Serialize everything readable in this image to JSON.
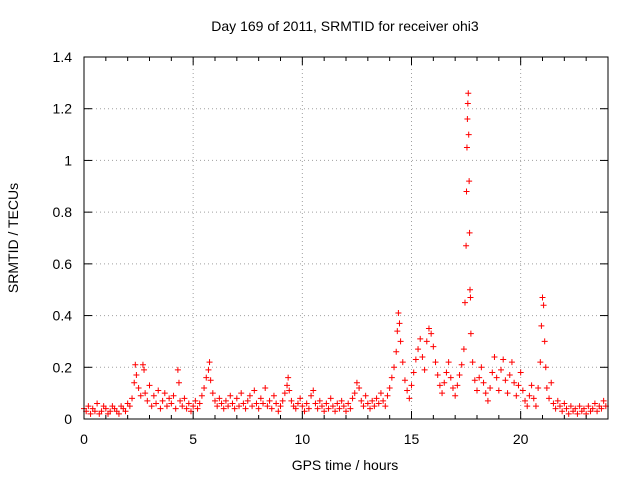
{
  "chart_data": {
    "type": "scatter",
    "title": "Day 169 of 2011, SRMTID for receiver ohi3",
    "xlabel": "GPS time / hours",
    "ylabel": "SRMTID / TECUs",
    "xlim": [
      0,
      24
    ],
    "ylim": [
      0,
      1.4
    ],
    "xticks": [
      0,
      5,
      10,
      15,
      20
    ],
    "xtick_labels": [
      "0",
      "5",
      "10",
      "15",
      "20"
    ],
    "yticks": [
      0,
      0.2,
      0.4,
      0.6,
      0.8,
      1.0,
      1.2,
      1.4
    ],
    "ytick_labels": [
      "0",
      "0.2",
      "0.4",
      "0.6",
      "0.8",
      "1",
      "1.2",
      "1.4"
    ],
    "grid": true,
    "marker": "plus",
    "colors": {
      "series": "#ff0000",
      "grid": "#a0a0a0",
      "axis": "#000000"
    },
    "series": [
      {
        "name": "SRMTID",
        "points": [
          [
            0.0,
            0.04
          ],
          [
            0.1,
            0.03
          ],
          [
            0.2,
            0.05
          ],
          [
            0.3,
            0.02
          ],
          [
            0.4,
            0.04
          ],
          [
            0.5,
            0.03
          ],
          [
            0.6,
            0.06
          ],
          [
            0.7,
            0.02
          ],
          [
            0.8,
            0.03
          ],
          [
            0.9,
            0.05
          ],
          [
            1.0,
            0.04
          ],
          [
            1.1,
            0.02
          ],
          [
            1.2,
            0.03
          ],
          [
            1.3,
            0.05
          ],
          [
            1.4,
            0.04
          ],
          [
            1.5,
            0.03
          ],
          [
            1.6,
            0.02
          ],
          [
            1.7,
            0.05
          ],
          [
            1.8,
            0.04
          ],
          [
            1.9,
            0.03
          ],
          [
            2.0,
            0.06
          ],
          [
            2.1,
            0.05
          ],
          [
            2.2,
            0.08
          ],
          [
            2.3,
            0.14
          ],
          [
            2.35,
            0.21
          ],
          [
            2.4,
            0.17
          ],
          [
            2.5,
            0.12
          ],
          [
            2.6,
            0.09
          ],
          [
            2.7,
            0.21
          ],
          [
            2.75,
            0.19
          ],
          [
            2.8,
            0.1
          ],
          [
            2.9,
            0.07
          ],
          [
            3.0,
            0.13
          ],
          [
            3.1,
            0.05
          ],
          [
            3.2,
            0.09
          ],
          [
            3.3,
            0.06
          ],
          [
            3.4,
            0.11
          ],
          [
            3.5,
            0.04
          ],
          [
            3.6,
            0.07
          ],
          [
            3.7,
            0.1
          ],
          [
            3.8,
            0.05
          ],
          [
            3.9,
            0.08
          ],
          [
            4.0,
            0.06
          ],
          [
            4.1,
            0.09
          ],
          [
            4.2,
            0.04
          ],
          [
            4.3,
            0.19
          ],
          [
            4.35,
            0.14
          ],
          [
            4.4,
            0.07
          ],
          [
            4.5,
            0.05
          ],
          [
            4.6,
            0.08
          ],
          [
            4.7,
            0.04
          ],
          [
            4.8,
            0.06
          ],
          [
            4.9,
            0.03
          ],
          [
            5.0,
            0.05
          ],
          [
            5.1,
            0.07
          ],
          [
            5.2,
            0.04
          ],
          [
            5.3,
            0.06
          ],
          [
            5.4,
            0.09
          ],
          [
            5.5,
            0.12
          ],
          [
            5.6,
            0.16
          ],
          [
            5.7,
            0.19
          ],
          [
            5.75,
            0.22
          ],
          [
            5.8,
            0.15
          ],
          [
            5.9,
            0.1
          ],
          [
            6.0,
            0.07
          ],
          [
            6.1,
            0.05
          ],
          [
            6.2,
            0.08
          ],
          [
            6.3,
            0.06
          ],
          [
            6.4,
            0.04
          ],
          [
            6.5,
            0.07
          ],
          [
            6.6,
            0.05
          ],
          [
            6.7,
            0.09
          ],
          [
            6.8,
            0.06
          ],
          [
            6.9,
            0.04
          ],
          [
            7.0,
            0.08
          ],
          [
            7.1,
            0.05
          ],
          [
            7.2,
            0.1
          ],
          [
            7.3,
            0.06
          ],
          [
            7.4,
            0.04
          ],
          [
            7.5,
            0.07
          ],
          [
            7.6,
            0.09
          ],
          [
            7.7,
            0.05
          ],
          [
            7.8,
            0.11
          ],
          [
            7.9,
            0.06
          ],
          [
            8.0,
            0.04
          ],
          [
            8.1,
            0.08
          ],
          [
            8.2,
            0.06
          ],
          [
            8.3,
            0.12
          ],
          [
            8.4,
            0.05
          ],
          [
            8.5,
            0.07
          ],
          [
            8.6,
            0.04
          ],
          [
            8.7,
            0.09
          ],
          [
            8.8,
            0.06
          ],
          [
            8.9,
            0.03
          ],
          [
            9.0,
            0.05
          ],
          [
            9.1,
            0.07
          ],
          [
            9.2,
            0.1
          ],
          [
            9.3,
            0.13
          ],
          [
            9.35,
            0.16
          ],
          [
            9.4,
            0.11
          ],
          [
            9.5,
            0.07
          ],
          [
            9.6,
            0.05
          ],
          [
            9.7,
            0.04
          ],
          [
            9.8,
            0.06
          ],
          [
            9.9,
            0.08
          ],
          [
            10.0,
            0.05
          ],
          [
            10.1,
            0.03
          ],
          [
            10.2,
            0.06
          ],
          [
            10.3,
            0.04
          ],
          [
            10.4,
            0.09
          ],
          [
            10.5,
            0.11
          ],
          [
            10.6,
            0.06
          ],
          [
            10.7,
            0.04
          ],
          [
            10.8,
            0.07
          ],
          [
            10.9,
            0.05
          ],
          [
            11.0,
            0.03
          ],
          [
            11.1,
            0.06
          ],
          [
            11.2,
            0.04
          ],
          [
            11.3,
            0.08
          ],
          [
            11.4,
            0.05
          ],
          [
            11.5,
            0.03
          ],
          [
            11.6,
            0.06
          ],
          [
            11.7,
            0.04
          ],
          [
            11.8,
            0.07
          ],
          [
            11.9,
            0.05
          ],
          [
            12.0,
            0.03
          ],
          [
            12.1,
            0.06
          ],
          [
            12.2,
            0.04
          ],
          [
            12.3,
            0.08
          ],
          [
            12.4,
            0.1
          ],
          [
            12.5,
            0.14
          ],
          [
            12.6,
            0.12
          ],
          [
            12.7,
            0.07
          ],
          [
            12.8,
            0.05
          ],
          [
            12.9,
            0.09
          ],
          [
            13.0,
            0.06
          ],
          [
            13.1,
            0.04
          ],
          [
            13.2,
            0.07
          ],
          [
            13.3,
            0.05
          ],
          [
            13.4,
            0.08
          ],
          [
            13.5,
            0.06
          ],
          [
            13.6,
            0.1
          ],
          [
            13.7,
            0.07
          ],
          [
            13.8,
            0.05
          ],
          [
            13.9,
            0.09
          ],
          [
            14.0,
            0.12
          ],
          [
            14.1,
            0.16
          ],
          [
            14.2,
            0.2
          ],
          [
            14.3,
            0.26
          ],
          [
            14.35,
            0.34
          ],
          [
            14.4,
            0.41
          ],
          [
            14.45,
            0.37
          ],
          [
            14.5,
            0.3
          ],
          [
            14.6,
            0.22
          ],
          [
            14.7,
            0.15
          ],
          [
            14.8,
            0.11
          ],
          [
            14.9,
            0.08
          ],
          [
            15.0,
            0.13
          ],
          [
            15.1,
            0.18
          ],
          [
            15.2,
            0.23
          ],
          [
            15.3,
            0.27
          ],
          [
            15.4,
            0.31
          ],
          [
            15.5,
            0.24
          ],
          [
            15.6,
            0.19
          ],
          [
            15.7,
            0.3
          ],
          [
            15.8,
            0.35
          ],
          [
            15.9,
            0.33
          ],
          [
            16.0,
            0.28
          ],
          [
            16.1,
            0.22
          ],
          [
            16.2,
            0.17
          ],
          [
            16.3,
            0.13
          ],
          [
            16.4,
            0.1
          ],
          [
            16.5,
            0.14
          ],
          [
            16.6,
            0.18
          ],
          [
            16.7,
            0.22
          ],
          [
            16.8,
            0.16
          ],
          [
            16.9,
            0.12
          ],
          [
            17.0,
            0.09
          ],
          [
            17.1,
            0.13
          ],
          [
            17.2,
            0.17
          ],
          [
            17.3,
            0.21
          ],
          [
            17.4,
            0.27
          ],
          [
            17.45,
            0.45
          ],
          [
            17.5,
            0.67
          ],
          [
            17.52,
            0.88
          ],
          [
            17.54,
            1.05
          ],
          [
            17.56,
            1.16
          ],
          [
            17.58,
            1.22
          ],
          [
            17.6,
            1.26
          ],
          [
            17.62,
            1.1
          ],
          [
            17.64,
            0.92
          ],
          [
            17.66,
            0.72
          ],
          [
            17.68,
            0.5
          ],
          [
            17.7,
            0.47
          ],
          [
            17.72,
            0.33
          ],
          [
            17.8,
            0.22
          ],
          [
            17.9,
            0.15
          ],
          [
            18.0,
            0.11
          ],
          [
            18.1,
            0.16
          ],
          [
            18.2,
            0.2
          ],
          [
            18.3,
            0.14
          ],
          [
            18.4,
            0.1
          ],
          [
            18.5,
            0.07
          ],
          [
            18.6,
            0.12
          ],
          [
            18.7,
            0.18
          ],
          [
            18.8,
            0.24
          ],
          [
            18.9,
            0.16
          ],
          [
            19.0,
            0.11
          ],
          [
            19.1,
            0.19
          ],
          [
            19.2,
            0.23
          ],
          [
            19.3,
            0.15
          ],
          [
            19.4,
            0.1
          ],
          [
            19.5,
            0.17
          ],
          [
            19.6,
            0.22
          ],
          [
            19.7,
            0.14
          ],
          [
            19.8,
            0.09
          ],
          [
            19.9,
            0.13
          ],
          [
            20.0,
            0.18
          ],
          [
            20.1,
            0.11
          ],
          [
            20.2,
            0.07
          ],
          [
            20.3,
            0.05
          ],
          [
            20.4,
            0.09
          ],
          [
            20.5,
            0.13
          ],
          [
            20.6,
            0.08
          ],
          [
            20.7,
            0.05
          ],
          [
            20.8,
            0.12
          ],
          [
            20.9,
            0.22
          ],
          [
            20.95,
            0.36
          ],
          [
            21.0,
            0.47
          ],
          [
            21.05,
            0.44
          ],
          [
            21.1,
            0.3
          ],
          [
            21.15,
            0.2
          ],
          [
            21.2,
            0.12
          ],
          [
            21.3,
            0.08
          ],
          [
            21.4,
            0.14
          ],
          [
            21.5,
            0.06
          ],
          [
            21.6,
            0.04
          ],
          [
            21.7,
            0.07
          ],
          [
            21.8,
            0.05
          ],
          [
            21.9,
            0.03
          ],
          [
            22.0,
            0.06
          ],
          [
            22.1,
            0.04
          ],
          [
            22.2,
            0.02
          ],
          [
            22.3,
            0.05
          ],
          [
            22.4,
            0.03
          ],
          [
            22.5,
            0.04
          ],
          [
            22.6,
            0.02
          ],
          [
            22.7,
            0.05
          ],
          [
            22.8,
            0.03
          ],
          [
            22.9,
            0.04
          ],
          [
            23.0,
            0.02
          ],
          [
            23.1,
            0.05
          ],
          [
            23.2,
            0.03
          ],
          [
            23.3,
            0.04
          ],
          [
            23.4,
            0.06
          ],
          [
            23.5,
            0.03
          ],
          [
            23.6,
            0.05
          ],
          [
            23.7,
            0.04
          ],
          [
            23.8,
            0.07
          ],
          [
            23.9,
            0.05
          ]
        ]
      }
    ]
  }
}
